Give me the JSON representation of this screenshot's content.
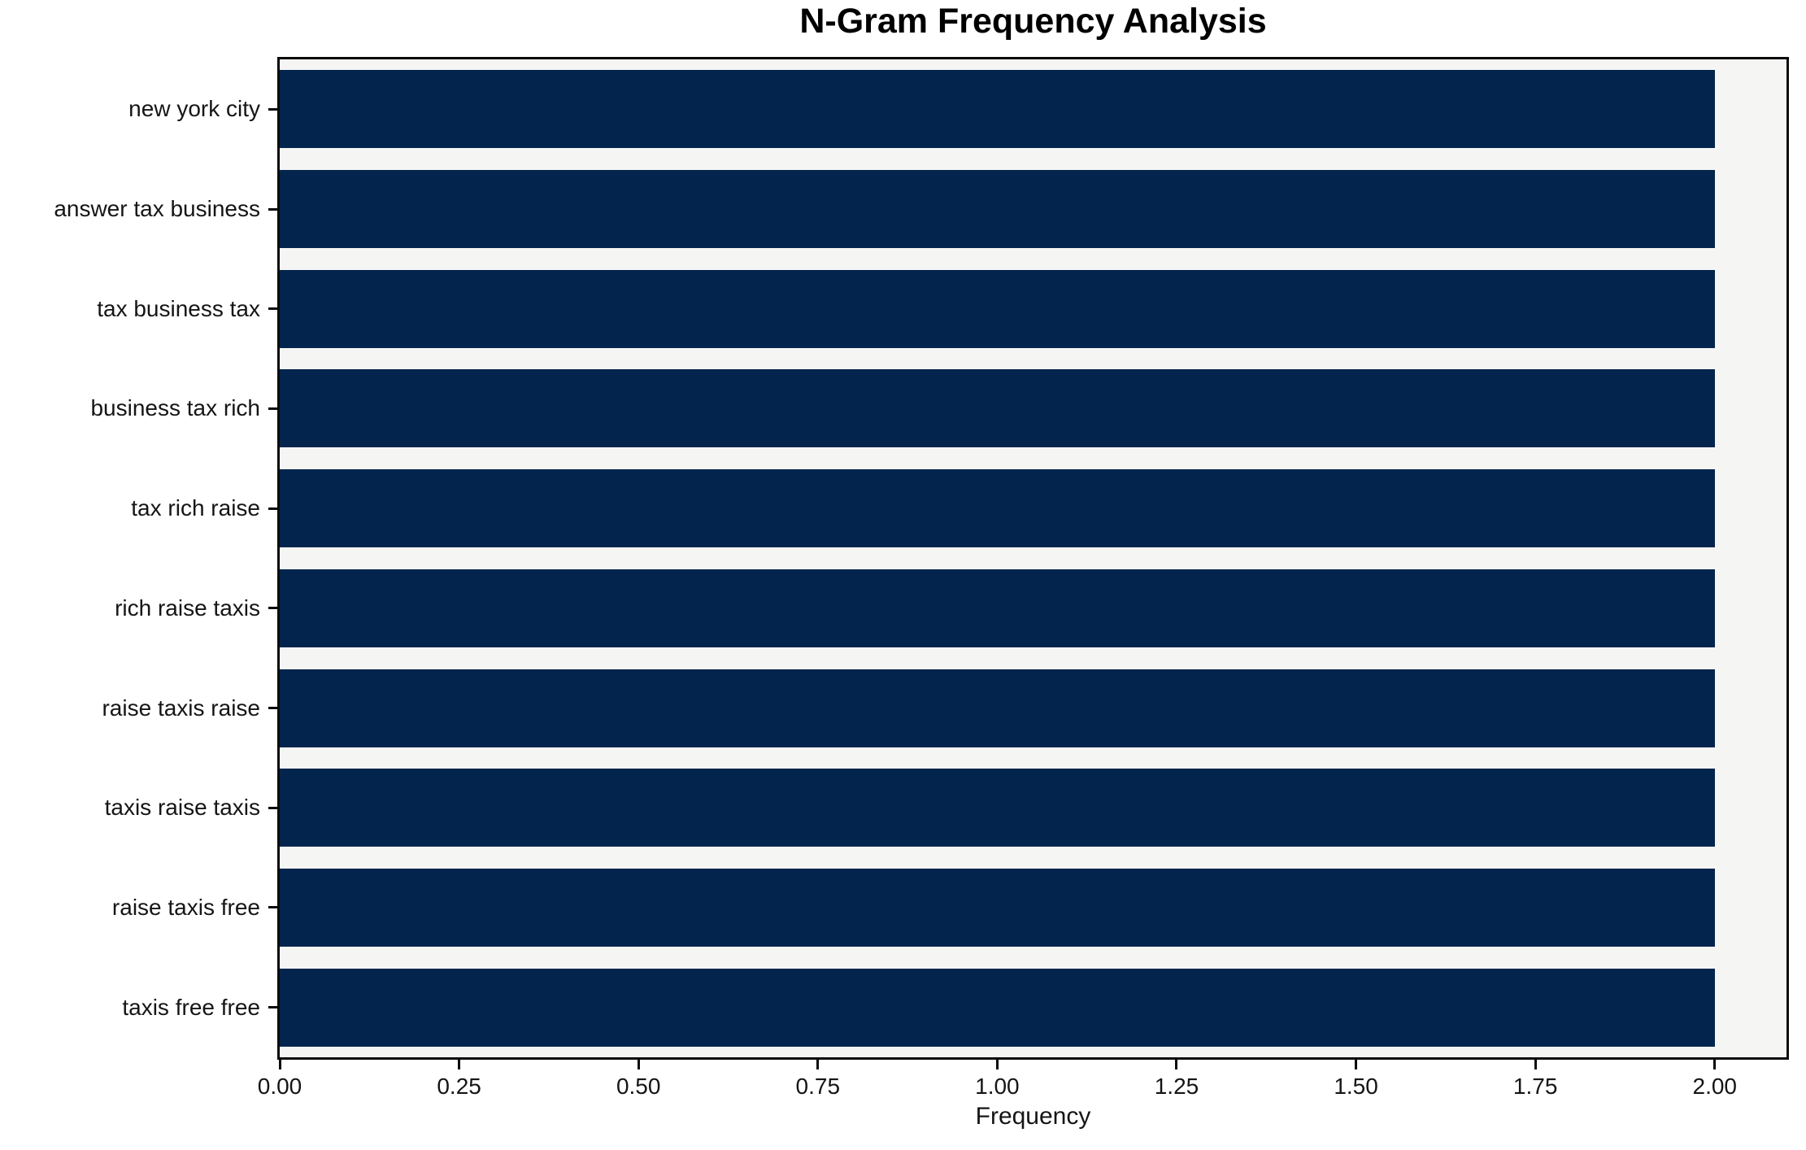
{
  "chart_data": {
    "type": "bar",
    "orientation": "horizontal",
    "title": "N-Gram Frequency Analysis",
    "xlabel": "Frequency",
    "ylabel": "",
    "categories": [
      "new york city",
      "answer tax business",
      "tax business tax",
      "business tax rich",
      "tax rich raise",
      "rich raise taxis",
      "raise taxis raise",
      "taxis raise taxis",
      "raise taxis free",
      "taxis free free"
    ],
    "values": [
      2,
      2,
      2,
      2,
      2,
      2,
      2,
      2,
      2,
      2
    ],
    "xlim": [
      0,
      2.1
    ],
    "xticks": [
      "0.00",
      "0.25",
      "0.50",
      "0.75",
      "1.00",
      "1.25",
      "1.50",
      "1.75",
      "2.00"
    ],
    "xtick_values": [
      0,
      0.25,
      0.5,
      0.75,
      1.0,
      1.25,
      1.5,
      1.75,
      2.0
    ],
    "grid": false,
    "legend_position": "none",
    "colors": {
      "bar": "#03254d",
      "plot_background": "#f5f5f4",
      "figure_background": "#ffffff",
      "spine": "#0a0a0a",
      "text": "#151515"
    }
  }
}
